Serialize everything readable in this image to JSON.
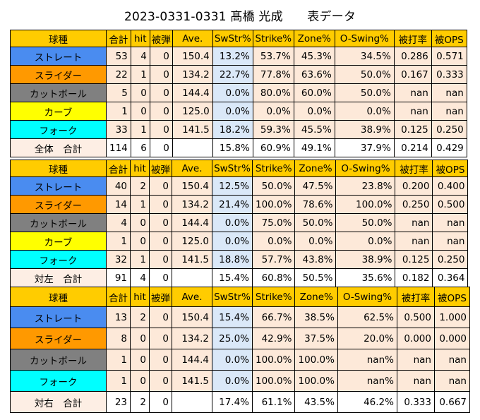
{
  "title": "2023-0331-0331 髙橋 光成　　表データ",
  "colors": {
    "header": "#ffcc00",
    "straight": "#4a8cf0",
    "slider": "#ff9900",
    "cutball": "#808080",
    "curve": "#ffff00",
    "fork": "#00ffff",
    "total_fill": "#fdeee4",
    "rate_fill": "#dae8f8",
    "pct_fill": "#fde9d9"
  },
  "columns": [
    "球種",
    "合計",
    "hit",
    "被弾",
    "Ave.",
    "SwStr%",
    "Strike%",
    "Zone%",
    "O-Swing%",
    "被打率",
    "被OPS"
  ],
  "tables": [
    {
      "rows": [
        {
          "pitch": "ストレート",
          "color": "#4a8cf0",
          "cells": [
            "53",
            "4",
            "0",
            "150.4",
            "13.2%",
            "53.7%",
            "45.3%",
            "34.5%",
            "0.286",
            "0.571"
          ]
        },
        {
          "pitch": "スライダー",
          "color": "#ff9900",
          "cells": [
            "22",
            "1",
            "0",
            "134.2",
            "22.7%",
            "77.8%",
            "63.6%",
            "50.0%",
            "0.167",
            "0.333"
          ]
        },
        {
          "pitch": "カットボール",
          "color": "#808080",
          "cells": [
            "5",
            "0",
            "0",
            "144.4",
            "0.0%",
            "80.0%",
            "60.0%",
            "50.0%",
            "nan",
            "nan"
          ]
        },
        {
          "pitch": "カーブ",
          "color": "#ffff00",
          "cells": [
            "1",
            "0",
            "0",
            "125.0",
            "0.0%",
            "0.0%",
            "0.0%",
            "0.0%",
            "nan",
            "nan"
          ]
        },
        {
          "pitch": "フォーク",
          "color": "#00ffff",
          "cells": [
            "33",
            "1",
            "0",
            "141.5",
            "18.2%",
            "59.3%",
            "45.5%",
            "38.9%",
            "0.125",
            "0.250"
          ]
        }
      ],
      "total": {
        "label": "全体　合計",
        "cells": [
          "114",
          "6",
          "0",
          "",
          "15.8%",
          "60.9%",
          "49.1%",
          "37.9%",
          "0.214",
          "0.429"
        ]
      }
    },
    {
      "rows": [
        {
          "pitch": "ストレート",
          "color": "#4a8cf0",
          "cells": [
            "40",
            "2",
            "0",
            "150.4",
            "12.5%",
            "50.0%",
            "47.5%",
            "23.8%",
            "0.200",
            "0.400"
          ]
        },
        {
          "pitch": "スライダー",
          "color": "#ff9900",
          "cells": [
            "14",
            "1",
            "0",
            "134.2",
            "21.4%",
            "100.0%",
            "78.6%",
            "100.0%",
            "0.250",
            "0.500"
          ]
        },
        {
          "pitch": "カットボール",
          "color": "#808080",
          "cells": [
            "4",
            "0",
            "0",
            "144.4",
            "0.0%",
            "75.0%",
            "50.0%",
            "50.0%",
            "nan",
            "nan"
          ]
        },
        {
          "pitch": "カーブ",
          "color": "#ffff00",
          "cells": [
            "1",
            "0",
            "0",
            "125.0",
            "0.0%",
            "0.0%",
            "0.0%",
            "0.0%",
            "nan",
            "nan"
          ]
        },
        {
          "pitch": "フォーク",
          "color": "#00ffff",
          "cells": [
            "32",
            "1",
            "0",
            "141.5",
            "18.8%",
            "57.7%",
            "43.8%",
            "38.9%",
            "0.125",
            "0.250"
          ]
        }
      ],
      "total": {
        "label": "対左　合計",
        "cells": [
          "91",
          "4",
          "0",
          "",
          "15.4%",
          "60.8%",
          "50.5%",
          "35.6%",
          "0.182",
          "0.364"
        ]
      }
    },
    {
      "rows": [
        {
          "pitch": "ストレート",
          "color": "#4a8cf0",
          "cells": [
            "13",
            "2",
            "0",
            "150.4",
            "15.4%",
            "66.7%",
            "38.5%",
            "62.5%",
            "0.500",
            "1.000"
          ]
        },
        {
          "pitch": "スライダー",
          "color": "#ff9900",
          "cells": [
            "8",
            "0",
            "0",
            "134.2",
            "25.0%",
            "42.9%",
            "37.5%",
            "20.0%",
            "0.000",
            "0.000"
          ]
        },
        {
          "pitch": "カットボール",
          "color": "#808080",
          "cells": [
            "1",
            "0",
            "0",
            "144.4",
            "0.0%",
            "100.0%",
            "100.0%",
            "nan%",
            "nan",
            "nan"
          ]
        },
        {
          "pitch": "フォーク",
          "color": "#00ffff",
          "cells": [
            "1",
            "0",
            "0",
            "141.5",
            "0.0%",
            "100.0%",
            "100.0%",
            "nan%",
            "nan",
            "nan"
          ]
        }
      ],
      "total": {
        "label": "対右　合計",
        "cells": [
          "23",
          "2",
          "0",
          "",
          "17.4%",
          "61.1%",
          "43.5%",
          "46.2%",
          "0.333",
          "0.667"
        ]
      }
    }
  ]
}
